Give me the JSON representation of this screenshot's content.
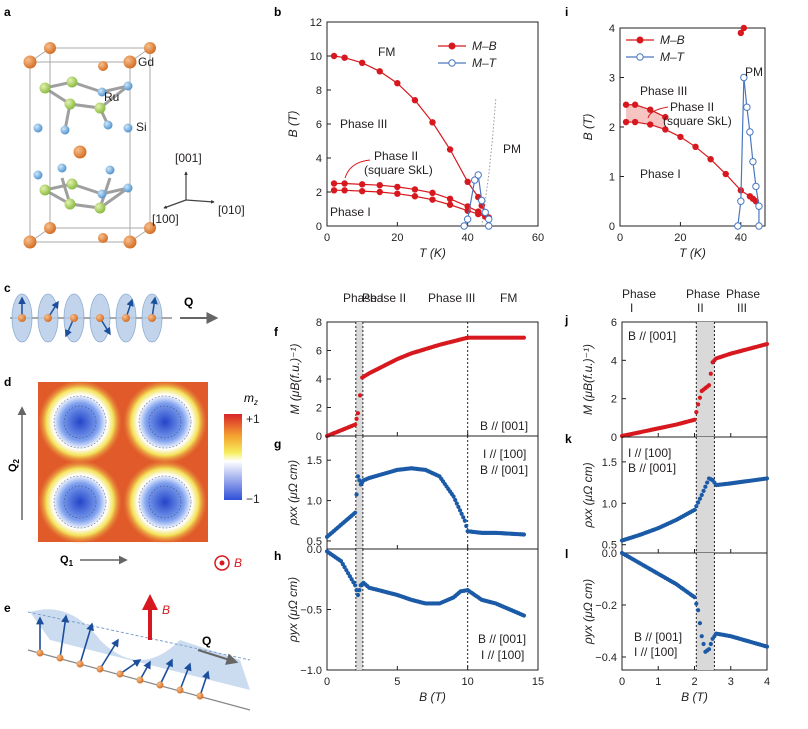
{
  "panel_letters": {
    "a": "a",
    "b": "b",
    "c": "c",
    "d": "d",
    "e": "e",
    "f": "f",
    "g": "g",
    "h": "h",
    "i": "i",
    "j": "j",
    "k": "k",
    "l": "l"
  },
  "panel_a": {
    "atoms": {
      "gd": "Gd",
      "ru": "Ru",
      "si": "Si"
    },
    "directions": {
      "d001": "[001]",
      "d100": "[100]",
      "d010": "[010]"
    },
    "colors": {
      "gd": "#e07b39",
      "ru": "#a8cf4f",
      "si": "#5fa8dc"
    }
  },
  "panel_c": {
    "q_label": "Q"
  },
  "panel_d": {
    "mz_label": "m",
    "mz_sub": "z",
    "cb_max": "+1",
    "cb_min": "−1",
    "q1": "Q",
    "q1_sub": "1",
    "q2": "Q",
    "q2_sub": "2",
    "b_label": "B"
  },
  "panel_e": {
    "b_label": "B",
    "q_label": "Q"
  },
  "colors": {
    "red": "#d7191f",
    "blue": "#1b5aa6",
    "lightblue": "#4a78c0",
    "grey_band": "#d9d9d9"
  },
  "panel_b": {
    "chart_data": {
      "type": "line",
      "xlabel": "T (K)",
      "ylabel": "B (T)",
      "xlim": [
        0,
        60
      ],
      "ylim": [
        0,
        12
      ],
      "xticks": [
        "0",
        "20",
        "40",
        "60"
      ],
      "yticks": [
        "0",
        "2",
        "4",
        "6",
        "8",
        "10",
        "12"
      ],
      "legend": [
        "M–B",
        "M–T"
      ],
      "series": [
        {
          "name": "M–B FM boundary",
          "x": [
            2,
            5,
            10,
            15,
            20,
            25,
            30,
            35,
            40,
            43,
            44,
            45,
            46
          ],
          "y": [
            10.0,
            9.9,
            9.6,
            9.1,
            8.4,
            7.4,
            6.1,
            4.5,
            2.6,
            1.7,
            1.2,
            0.7,
            0.4
          ]
        },
        {
          "name": "M–B phase II upper",
          "x": [
            2,
            5,
            10,
            15,
            20,
            25,
            30,
            35,
            40,
            43,
            45,
            46
          ],
          "y": [
            2.5,
            2.5,
            2.45,
            2.4,
            2.3,
            2.15,
            1.95,
            1.6,
            1.15,
            0.85,
            0.6,
            0.5
          ]
        },
        {
          "name": "M–B phase II lower",
          "x": [
            2,
            5,
            10,
            15,
            20,
            25,
            30,
            35,
            40,
            43,
            45,
            46
          ],
          "y": [
            2.1,
            2.1,
            2.05,
            2.0,
            1.9,
            1.75,
            1.55,
            1.25,
            0.9,
            0.7,
            0.55,
            0.45
          ]
        },
        {
          "name": "M–T",
          "x": [
            39,
            40,
            42,
            43,
            44,
            45,
            46,
            46
          ],
          "y": [
            0.0,
            0.4,
            2.7,
            3.0,
            1.5,
            0.8,
            0.4,
            0.0
          ]
        }
      ],
      "annotations": {
        "fm": "FM",
        "phase3": "Phase III",
        "phase2": "Phase II",
        "skl": "(square SkL)",
        "pm": "PM",
        "phase1": "Phase I"
      }
    }
  },
  "panel_i": {
    "chart_data": {
      "type": "line",
      "xlabel": "T (K)",
      "ylabel": "B (T)",
      "xlim": [
        0,
        48
      ],
      "ylim": [
        0,
        4
      ],
      "xticks": [
        "0",
        "20",
        "40"
      ],
      "yticks": [
        "0",
        "1",
        "2",
        "3",
        "4"
      ],
      "legend": [
        "M–B",
        "M–T"
      ],
      "series": [
        {
          "name": "M–B FM boundary",
          "x": [
            2,
            5,
            10,
            15,
            20,
            25,
            30,
            35,
            40,
            43,
            44,
            45
          ],
          "y": [
            2.1,
            2.1,
            2.05,
            1.95,
            1.8,
            1.6,
            1.35,
            1.05,
            0.72,
            0.6,
            0.55,
            0.5
          ]
        },
        {
          "name": "M–B phase II upper",
          "x": [
            2,
            5,
            10,
            15
          ],
          "y": [
            2.45,
            2.45,
            2.35,
            2.2
          ]
        },
        {
          "name": "M–B high",
          "x": [
            40,
            41
          ],
          "y": [
            3.9,
            4.0
          ]
        },
        {
          "name": "M–T",
          "x": [
            39,
            40,
            41,
            42,
            43,
            44,
            45,
            46,
            46
          ],
          "y": [
            0.0,
            0.5,
            3.0,
            2.4,
            1.9,
            1.3,
            0.8,
            0.4,
            0.0
          ]
        }
      ],
      "annotations": {
        "pm": "PM",
        "phase3": "Phase III",
        "phase2": "Phase II",
        "skl": "(square SkL)",
        "phase1": "Phase I"
      }
    }
  },
  "panel_f": {
    "chart_data": {
      "type": "line",
      "xlabel": "",
      "ylabel": "M (μB(f.u.)⁻¹)",
      "xlim": [
        0,
        15
      ],
      "ylim": [
        0,
        8
      ],
      "yticks": [
        "0",
        "2",
        "4",
        "6",
        "8"
      ],
      "series": [
        {
          "name": "M",
          "x": [
            0,
            1,
            2,
            2.2,
            2.5,
            3,
            4,
            5,
            6,
            7,
            8,
            9,
            10,
            11,
            12,
            13,
            14
          ],
          "y": [
            0,
            0.4,
            0.8,
            1.6,
            4.1,
            4.4,
            4.9,
            5.4,
            5.8,
            6.1,
            6.4,
            6.65,
            6.9,
            6.9,
            6.9,
            6.9,
            6.9
          ]
        }
      ],
      "phase_labels": [
        "Phase I",
        "Phase II",
        "Phase III",
        "FM"
      ],
      "annotation": "B // [001]"
    }
  },
  "panel_g": {
    "chart_data": {
      "type": "line",
      "xlabel": "",
      "ylabel": "ρxx (μΩ cm)",
      "xlim": [
        0,
        15
      ],
      "ylim": [
        0.4,
        1.8
      ],
      "yticks": [
        "0.5",
        "1.0",
        "1.5"
      ],
      "series": [
        {
          "name": "rho_xx",
          "x": [
            0,
            1,
            2,
            2.2,
            2.4,
            2.6,
            3,
            4,
            5,
            6,
            7,
            8,
            9,
            9.8,
            10,
            11,
            12,
            13,
            14
          ],
          "y": [
            0.55,
            0.7,
            0.85,
            1.3,
            1.2,
            1.25,
            1.28,
            1.33,
            1.38,
            1.4,
            1.38,
            1.3,
            1.05,
            0.75,
            0.62,
            0.6,
            0.6,
            0.59,
            0.58
          ]
        }
      ],
      "annotation1": "I // [100]",
      "annotation2": "B // [001]"
    }
  },
  "panel_h": {
    "chart_data": {
      "type": "line",
      "xlabel": "B (T)",
      "ylabel": "ρyx (μΩ cm)",
      "xlim": [
        0,
        15
      ],
      "ylim": [
        -1.0,
        0.0
      ],
      "xticks": [
        "0",
        "5",
        "10",
        "15"
      ],
      "yticks": [
        "0.0",
        "−0.5",
        "−1.0"
      ],
      "series": [
        {
          "name": "rho_yx",
          "x": [
            0,
            1,
            1.5,
            2,
            2.2,
            2.4,
            2.6,
            3,
            4,
            5,
            6,
            7,
            8,
            9,
            9.5,
            10,
            10.5,
            11,
            12,
            13,
            14
          ],
          "y": [
            -0.02,
            -0.1,
            -0.2,
            -0.3,
            -0.38,
            -0.3,
            -0.28,
            -0.32,
            -0.35,
            -0.38,
            -0.42,
            -0.45,
            -0.45,
            -0.4,
            -0.35,
            -0.34,
            -0.38,
            -0.42,
            -0.45,
            -0.5,
            -0.55
          ]
        }
      ],
      "annotation1": "B // [001]",
      "annotation2": "I // [100]"
    }
  },
  "panel_j": {
    "chart_data": {
      "type": "line",
      "xlabel": "",
      "ylabel": "M (μB(f.u.)⁻¹)",
      "xlim": [
        0,
        4
      ],
      "ylim": [
        0,
        6
      ],
      "yticks": [
        "0",
        "2",
        "4",
        "6"
      ],
      "series": [
        {
          "name": "M",
          "x": [
            0,
            0.5,
            1,
            1.5,
            2,
            2.1,
            2.2,
            2.4,
            2.5,
            2.6,
            3,
            3.5,
            4
          ],
          "y": [
            0.05,
            0.25,
            0.45,
            0.65,
            0.9,
            1.7,
            2.4,
            2.7,
            3.9,
            4.1,
            4.35,
            4.6,
            4.85
          ]
        }
      ],
      "phase_labels": [
        "Phase",
        "I",
        "Phase",
        "II",
        "Phase",
        "III"
      ],
      "annotation": "B // [001]"
    }
  },
  "panel_k": {
    "chart_data": {
      "type": "line",
      "xlabel": "",
      "ylabel": "ρxx (μΩ cm)",
      "xlim": [
        0,
        4
      ],
      "ylim": [
        0.4,
        1.8
      ],
      "yticks": [
        "0.5",
        "1.0",
        "1.5"
      ],
      "series": [
        {
          "name": "rho_xx",
          "x": [
            0,
            0.5,
            1,
            1.5,
            2,
            2.2,
            2.4,
            2.5,
            2.6,
            3,
            3.5,
            4
          ],
          "y": [
            0.55,
            0.62,
            0.7,
            0.8,
            0.92,
            1.1,
            1.3,
            1.28,
            1.22,
            1.24,
            1.27,
            1.3
          ]
        }
      ],
      "annotation1": "I // [100]",
      "annotation2": "B // [001]"
    }
  },
  "panel_l": {
    "chart_data": {
      "type": "line",
      "xlabel": "B (T)",
      "ylabel": "ρyx (μΩ cm)",
      "xlim": [
        0,
        4
      ],
      "ylim": [
        -0.45,
        0.0
      ],
      "xticks": [
        "0",
        "1",
        "2",
        "3",
        "4"
      ],
      "yticks": [
        "0.0",
        "−0.2",
        "−0.4"
      ],
      "series": [
        {
          "name": "rho_yx",
          "x": [
            0,
            0.5,
            1,
            1.5,
            2,
            2.1,
            2.2,
            2.3,
            2.4,
            2.5,
            2.6,
            3,
            3.5,
            4
          ],
          "y": [
            0.0,
            -0.04,
            -0.08,
            -0.12,
            -0.17,
            -0.22,
            -0.32,
            -0.38,
            -0.37,
            -0.33,
            -0.31,
            -0.32,
            -0.34,
            -0.36
          ]
        }
      ],
      "annotation1": "B // [001]",
      "annotation2": "I // [100]"
    }
  }
}
